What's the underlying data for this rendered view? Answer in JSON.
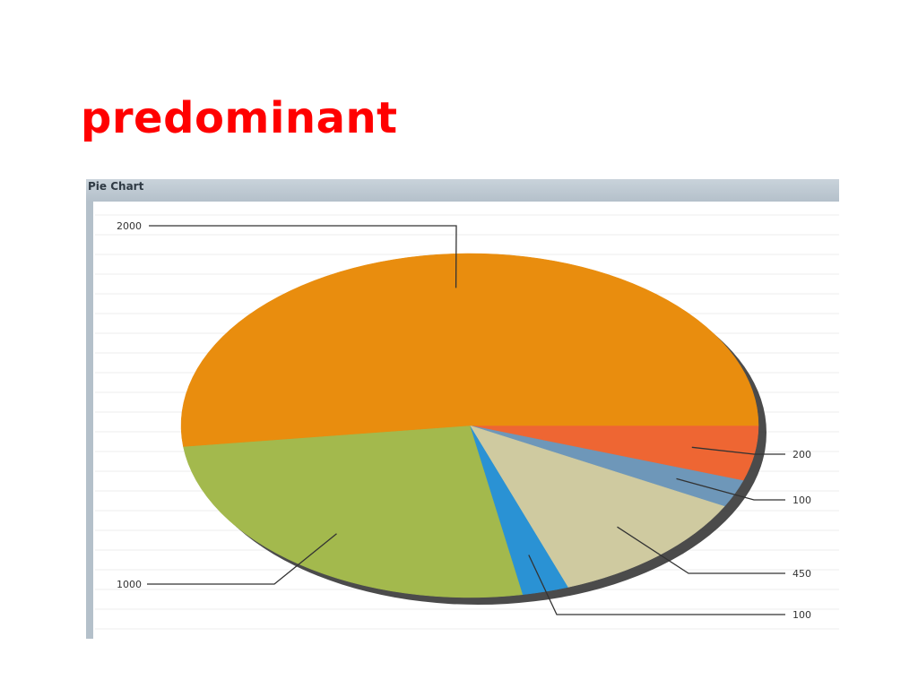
{
  "slide": {
    "title": "predominant"
  },
  "panel": {
    "header": "Pie Chart"
  },
  "chart_data": {
    "type": "pie",
    "title": "Pie Chart",
    "slices": [
      {
        "value": 200,
        "label": "200",
        "color": "#ee6633"
      },
      {
        "value": 100,
        "label": "100",
        "color": "#6e97b9"
      },
      {
        "value": 450,
        "label": "450",
        "color": "#cfcaa0"
      },
      {
        "value": 100,
        "label": "100",
        "color": "#2a92d4"
      },
      {
        "value": 1000,
        "label": "1000",
        "color": "#a3b94d"
      },
      {
        "value": 2000,
        "label": "2000",
        "color": "#e98d0e"
      }
    ],
    "grid": true,
    "legend": "none"
  }
}
